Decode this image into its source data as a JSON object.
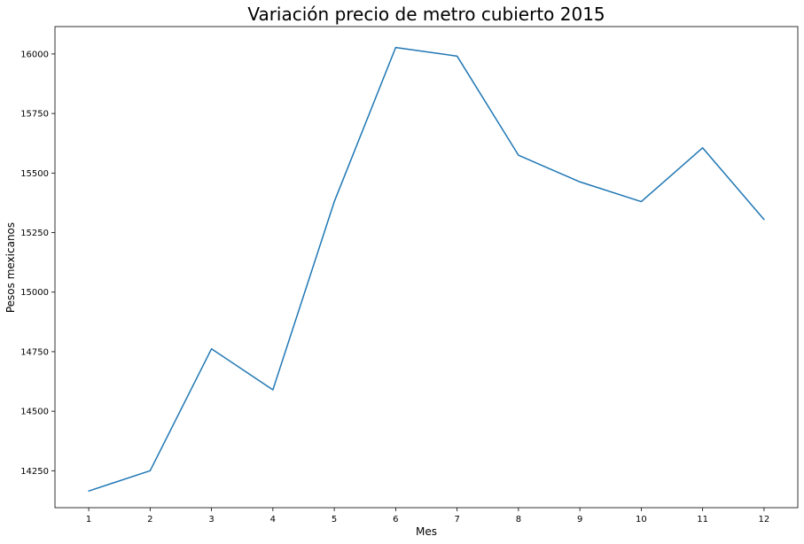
{
  "chart_data": {
    "type": "line",
    "title": "Variación precio de metro cubierto 2015",
    "xlabel": "Mes",
    "ylabel": "Pesos mexicanos",
    "x": [
      1,
      2,
      3,
      4,
      5,
      6,
      7,
      8,
      9,
      10,
      11,
      12
    ],
    "x_ticks": [
      "1",
      "2",
      "3",
      "4",
      "5",
      "6",
      "7",
      "8",
      "9",
      "10",
      "11",
      "12"
    ],
    "y_ticks": [
      "14250",
      "14500",
      "14750",
      "15000",
      "15250",
      "15500",
      "15750",
      "16000"
    ],
    "y_tick_values": [
      14250,
      14500,
      14750,
      15000,
      15250,
      15500,
      15750,
      16000
    ],
    "series": [
      {
        "values": [
          14165,
          14250,
          14762,
          14590,
          15380,
          16027,
          15991,
          15575,
          15463,
          15380,
          15606,
          15305
        ],
        "color": "#1f77b4"
      }
    ],
    "xlim": [
      0.45,
      12.55
    ],
    "ylim": [
      14095,
      16115
    ],
    "grid": false,
    "legend": "none"
  }
}
